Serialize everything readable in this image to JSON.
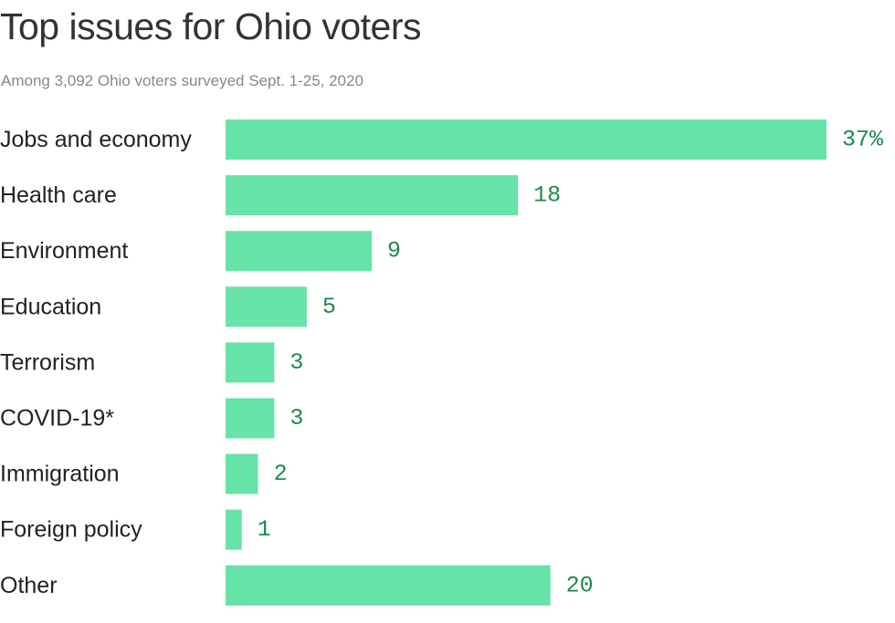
{
  "chart_data": {
    "type": "bar",
    "orientation": "horizontal",
    "title": "Top issues for Ohio voters",
    "subtitle": "Among 3,092 Ohio voters surveyed Sept. 1-25, 2020",
    "categories": [
      "Jobs and economy",
      "Health care",
      "Environment",
      "Education",
      "Terrorism",
      "COVID-19*",
      "Immigration",
      "Foreign policy",
      "Other"
    ],
    "values": [
      37,
      18,
      9,
      5,
      3,
      3,
      2,
      1,
      20
    ],
    "value_labels": [
      "37%",
      "18",
      "9",
      "5",
      "3",
      "3",
      "2",
      "1",
      "20"
    ],
    "xlim": [
      0,
      37
    ],
    "grid": false,
    "legend": "none",
    "colors": {
      "bar": "#66e3a6",
      "value_label": "#1b8a4b",
      "category_label": "#222222",
      "title": "#333333",
      "subtitle": "#888888"
    }
  }
}
